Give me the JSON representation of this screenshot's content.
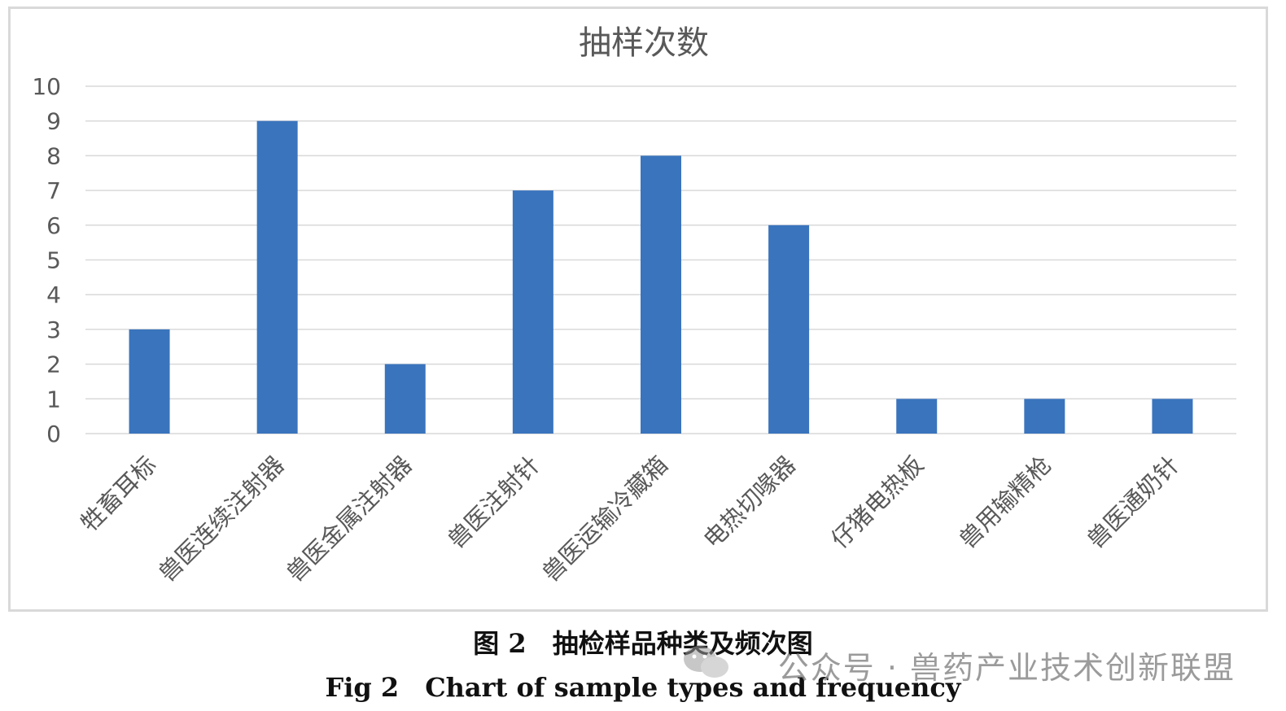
{
  "chart_data": {
    "type": "bar",
    "title": "抽样次数",
    "categories": [
      "牲畜耳标",
      "兽医连续注射器",
      "兽医金属注射器",
      "兽医注射针",
      "兽医运输冷藏箱",
      "电热切喙器",
      "仔猪电热板",
      "兽用输精枪",
      "兽医通奶针"
    ],
    "values": [
      3,
      9,
      2,
      7,
      8,
      6,
      1,
      1,
      1
    ],
    "ylim": [
      0,
      10
    ],
    "yticks": [
      "0",
      "1",
      "2",
      "3",
      "4",
      "5",
      "6",
      "7",
      "8",
      "9",
      "10"
    ],
    "xlabel": "",
    "ylabel": "",
    "grid": true,
    "bar_color": "#3a74bd",
    "grid_color": "#d9d9d9"
  },
  "caption": {
    "cn": "图 2　抽检样品种类及频次图",
    "en": "Fig 2　Chart of sample types and frequency"
  },
  "watermark": {
    "text": "公众号 · 兽药产业技术创新联盟",
    "icon": "wechat-icon"
  }
}
